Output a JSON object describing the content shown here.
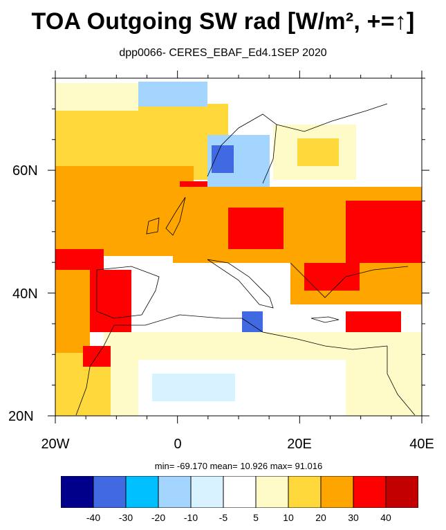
{
  "title": "TOA Outgoing SW rad [W/m², +=↑]",
  "subtitle": "dpp0066- CERES_EBAF_Ed4.1SEP 2020",
  "stats": "min= -69.170  mean=  10.926  max=  91.016",
  "map": {
    "lon_range": [
      -20,
      40
    ],
    "lat_range": [
      20,
      75
    ],
    "lat_tick_labels": [
      "60N",
      "40N",
      "20N"
    ],
    "lon_tick_labels": [
      "20W",
      "0",
      "20E",
      "40E"
    ]
  },
  "colorbar": {
    "colors": [
      "#00008b",
      "#4169e1",
      "#00bfff",
      "#a3d5ff",
      "#d8f2ff",
      "#ffffff",
      "#fffbc8",
      "#ffd93b",
      "#ffa500",
      "#ff0000",
      "#c30000"
    ],
    "labels": [
      "-40",
      "-30",
      "-20",
      "-10",
      "-5",
      "5",
      "10",
      "20",
      "30",
      "40"
    ]
  }
}
